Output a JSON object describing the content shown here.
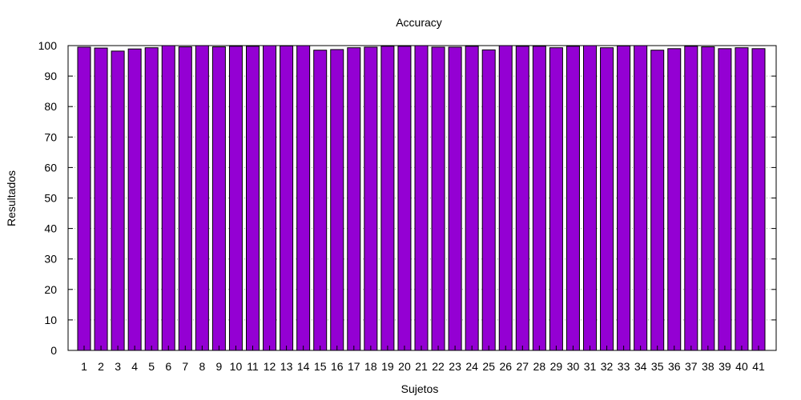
{
  "chart_data": {
    "type": "bar",
    "title": "Accuracy",
    "xlabel": "Sujetos",
    "ylabel": "Resultados",
    "ylim": [
      0,
      100
    ],
    "yticks": [
      0,
      10,
      20,
      30,
      40,
      50,
      60,
      70,
      80,
      90,
      100
    ],
    "grid": true,
    "categories": [
      "1",
      "2",
      "3",
      "4",
      "5",
      "6",
      "7",
      "8",
      "9",
      "10",
      "11",
      "12",
      "13",
      "14",
      "15",
      "16",
      "17",
      "18",
      "19",
      "20",
      "21",
      "22",
      "23",
      "24",
      "25",
      "26",
      "27",
      "28",
      "29",
      "30",
      "31",
      "32",
      "33",
      "34",
      "35",
      "36",
      "37",
      "38",
      "39",
      "40",
      "41"
    ],
    "values": [
      99.5,
      99.2,
      98.2,
      98.9,
      99.3,
      100,
      99.6,
      100,
      99.6,
      99.8,
      99.8,
      100,
      99.9,
      100,
      98.5,
      98.7,
      99.3,
      99.5,
      99.8,
      99.8,
      100,
      99.5,
      99.5,
      99.8,
      98.6,
      100,
      99.8,
      99.8,
      99.3,
      99.8,
      100,
      99.3,
      99.9,
      100,
      98.5,
      99.0,
      99.8,
      99.6,
      99.0,
      99.3,
      99.0
    ],
    "colors": {
      "bar": "#9400d3",
      "grid": "#a0a0a0",
      "axis": "#000000"
    }
  }
}
